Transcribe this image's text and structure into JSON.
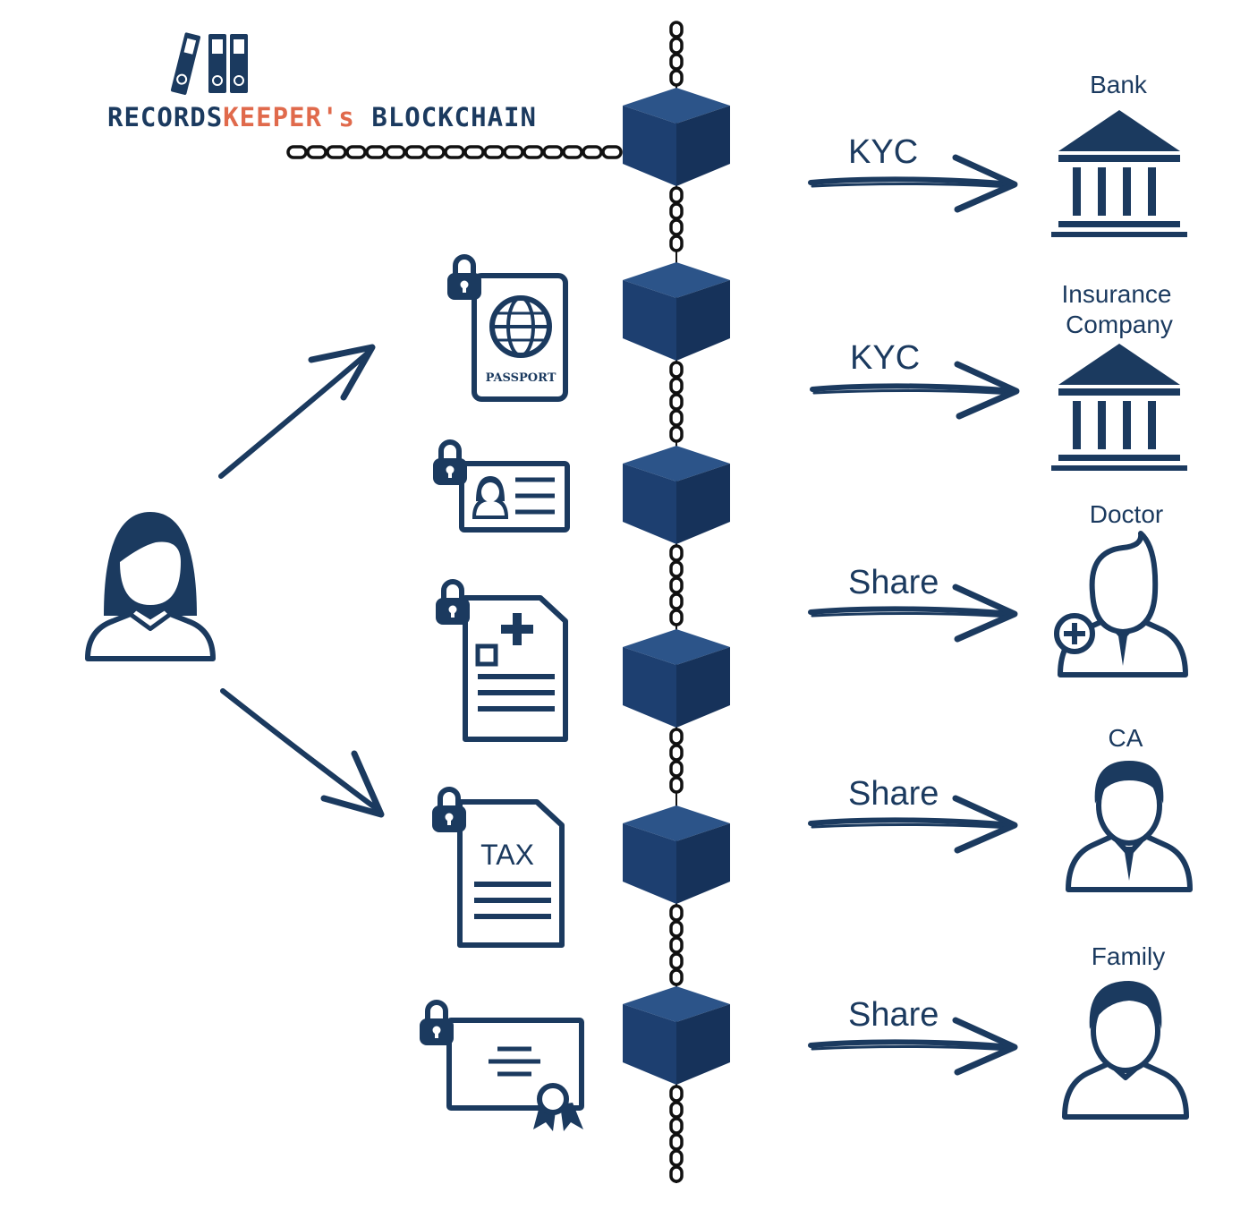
{
  "logo": {
    "part1": "RECORDS",
    "part2": "KEEPER's",
    "part3": " BLOCKCHAIN"
  },
  "colors": {
    "navy": "#1b3a5f",
    "cube_front": "#1d3f70",
    "cube_top": "#2c5489",
    "cube_side": "#16325a",
    "accent": "#e06a4c",
    "chain": "#111111"
  },
  "documents": {
    "passport_text": "PASSPORT",
    "tax_text": "TAX"
  },
  "actions": {
    "kyc_bank": "KYC",
    "kyc_insurance": "KYC",
    "share_doctor": "Share",
    "share_ca": "Share",
    "share_family": "Share"
  },
  "recipients": {
    "bank": "Bank",
    "insurance_line1": "Insurance",
    "insurance_line2": "Company",
    "doctor": "Doctor",
    "ca": "CA",
    "family": "Family"
  },
  "icons": {
    "owner": "woman-user-icon",
    "passport": "passport-icon",
    "id_card": "id-card-icon",
    "medical": "medical-record-icon",
    "tax": "tax-document-icon",
    "certificate": "certificate-icon",
    "lock": "lock-icon",
    "bank": "bank-building-icon",
    "doctor": "doctor-icon",
    "ca": "accountant-icon",
    "family": "family-member-icon"
  }
}
